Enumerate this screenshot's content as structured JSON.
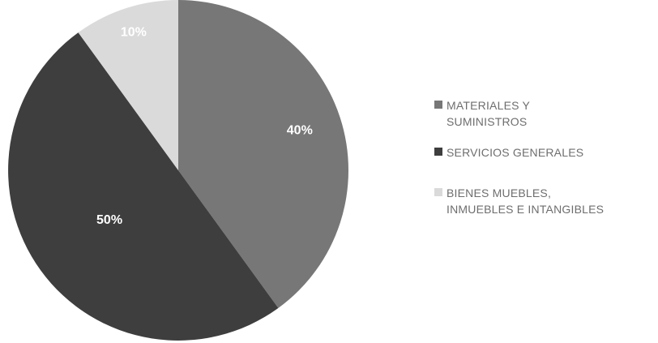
{
  "chart_data": {
    "type": "pie",
    "categories": [
      "MATERIALES Y\nSUMINISTROS",
      "SERVICIOS GENERALES",
      "BIENES MUEBLES,\nINMUEBLES E INTANGIBLES"
    ],
    "values": [
      40,
      50,
      10
    ],
    "data_labels": [
      "40%",
      "50%",
      "10%"
    ],
    "colors": [
      "#777777",
      "#3e3e3e",
      "#dadada"
    ],
    "label_colors": [
      "#ffffff",
      "#ffffff",
      "#ffffff"
    ],
    "start_angle_deg": 0,
    "direction": "clockwise",
    "legend_position": "right"
  }
}
